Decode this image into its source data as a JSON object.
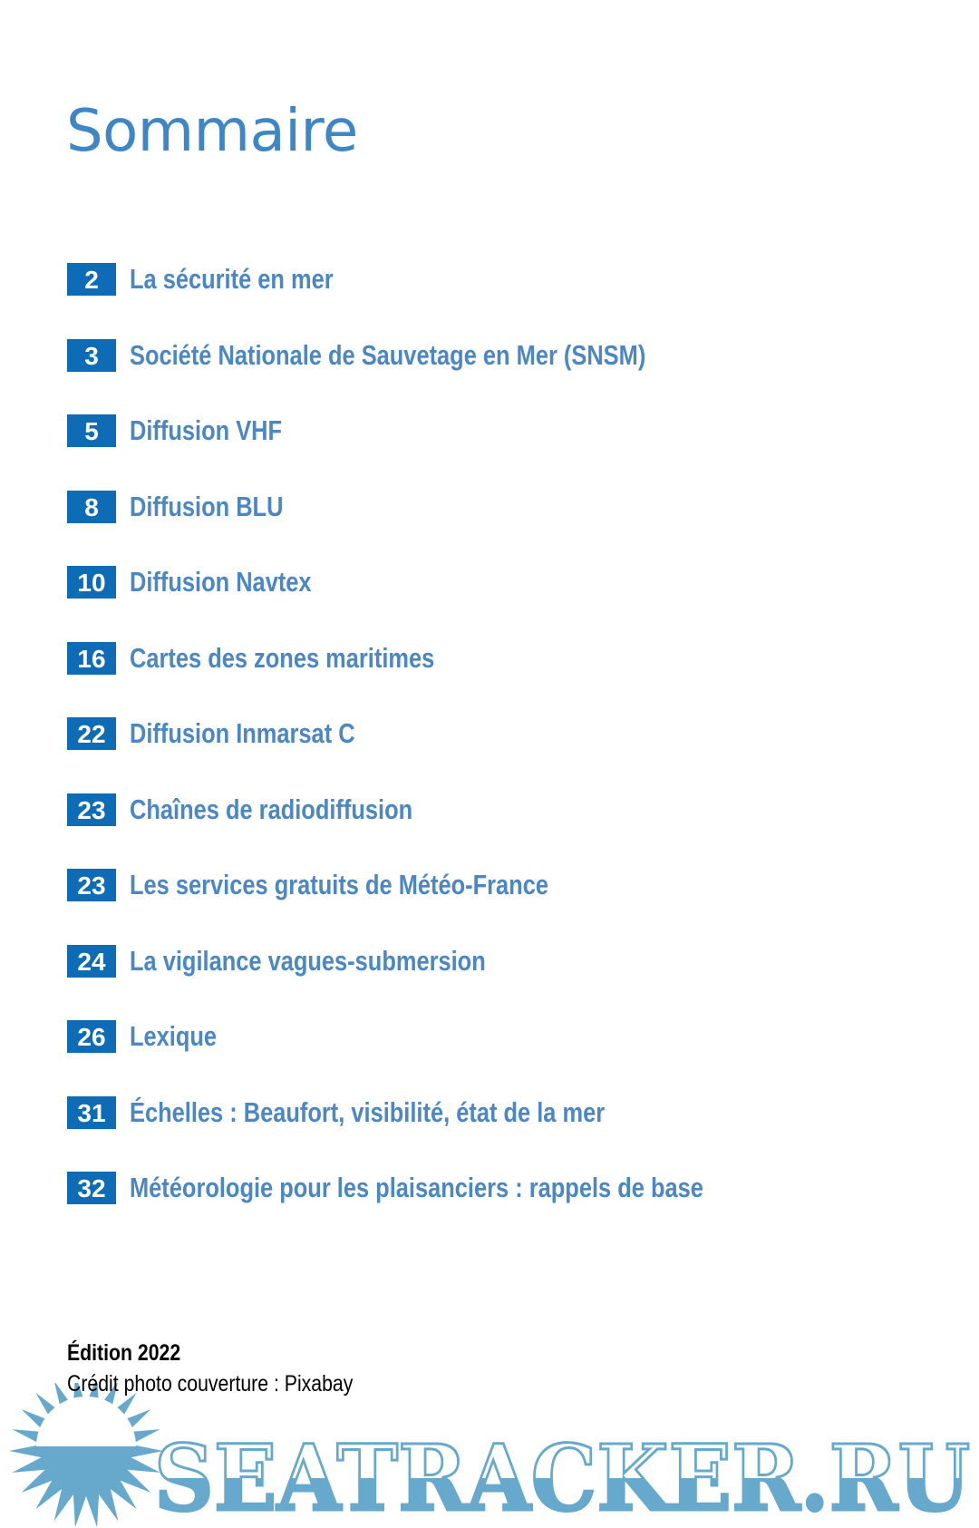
{
  "page_title": "Sommaire",
  "toc": [
    {
      "page": "2",
      "label": "La sécurité en mer"
    },
    {
      "page": "3",
      "label": "Société Nationale de Sauvetage en Mer (SNSM)"
    },
    {
      "page": "5",
      "label": "Diffusion VHF"
    },
    {
      "page": "8",
      "label": "Diffusion BLU"
    },
    {
      "page": "10",
      "label": "Diffusion Navtex"
    },
    {
      "page": "16",
      "label": "Cartes des zones maritimes"
    },
    {
      "page": "22",
      "label": "Diffusion Inmarsat C"
    },
    {
      "page": "23",
      "label": "Chaînes de radiodiffusion"
    },
    {
      "page": "23",
      "label": "Les services gratuits de Météo-France"
    },
    {
      "page": "24",
      "label": "La vigilance vagues-submersion"
    },
    {
      "page": "26",
      "label": "Lexique"
    },
    {
      "page": "31",
      "label": "Échelles : Beaufort, visibilité, état de la mer"
    },
    {
      "page": "32",
      "label": "Météorologie pour les plaisanciers : rappels de base"
    }
  ],
  "footer": {
    "edition": "Édition 2022",
    "credit": "Crédit photo couverture : Pixabay"
  },
  "watermark": {
    "text": "SEATRACKER.RU",
    "color": "#67a9cc"
  },
  "colors": {
    "title": "#3f86c6",
    "number_box": "#0d6cb5",
    "label": "#4a87c4"
  }
}
